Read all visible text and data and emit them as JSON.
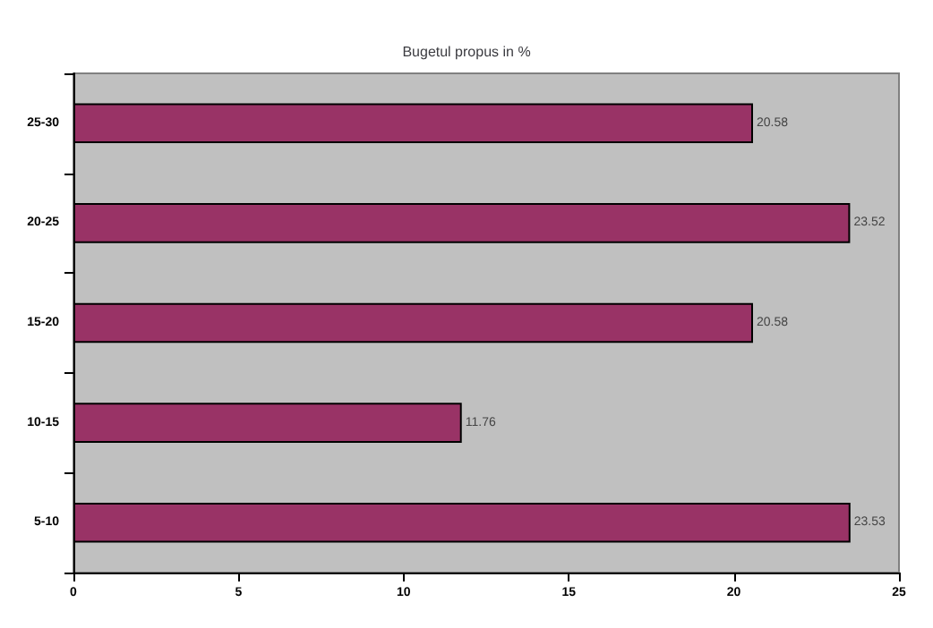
{
  "chart_data": {
    "type": "bar",
    "orientation": "horizontal",
    "title": "Bugetul propus in %",
    "categories": [
      "25-30",
      "20-25",
      "15-20",
      "10-15",
      "5-10"
    ],
    "values": [
      20.58,
      23.52,
      20.58,
      11.76,
      23.53
    ],
    "color": "#993366",
    "xlim": [
      0,
      25
    ],
    "xticks": [
      0,
      5,
      10,
      15,
      20,
      25
    ],
    "grid": false,
    "data_labels": true
  }
}
